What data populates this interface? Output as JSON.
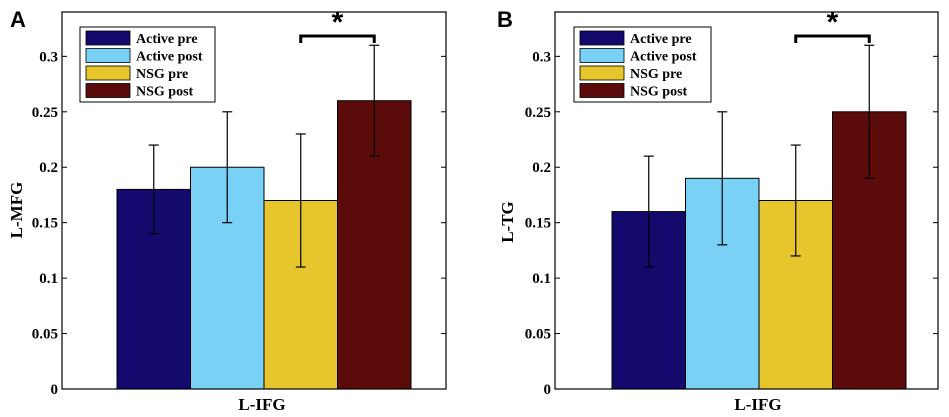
{
  "chart_data": [
    {
      "type": "bar",
      "panel": "A",
      "categories": [
        "L-IFG"
      ],
      "xlabel": "L-IFG",
      "ylabel": "L-MFG",
      "ylim": [
        0,
        0.34
      ],
      "yticks": [
        "0",
        "0.05",
        "0.1",
        "0.15",
        "0.2",
        "0.25",
        "0.3"
      ],
      "grid": false,
      "legend_position": "top-left",
      "series": [
        {
          "name": "Active pre",
          "values": [
            0.18
          ],
          "error": [
            0.04
          ],
          "color": "#140a6e"
        },
        {
          "name": "Active post",
          "values": [
            0.2
          ],
          "error": [
            0.05
          ],
          "color": "#79d2f5"
        },
        {
          "name": "NSG pre",
          "values": [
            0.17
          ],
          "error": [
            0.06
          ],
          "color": "#e7c52c"
        },
        {
          "name": "NSG post",
          "values": [
            0.26
          ],
          "error": [
            0.05
          ],
          "color": "#5c0b0b"
        }
      ],
      "annotation": "*"
    },
    {
      "type": "bar",
      "panel": "B",
      "categories": [
        "L-IFG"
      ],
      "xlabel": "L-IFG",
      "ylabel": "L-TG",
      "ylim": [
        0,
        0.34
      ],
      "yticks": [
        "0",
        "0.05",
        "0.1",
        "0.15",
        "0.2",
        "0.25",
        "0.3"
      ],
      "grid": false,
      "legend_position": "top-left",
      "series": [
        {
          "name": "Active pre",
          "values": [
            0.16
          ],
          "error": [
            0.05
          ],
          "color": "#140a6e"
        },
        {
          "name": "Active post",
          "values": [
            0.19
          ],
          "error": [
            0.06
          ],
          "color": "#79d2f5"
        },
        {
          "name": "NSG pre",
          "values": [
            0.17
          ],
          "error": [
            0.05
          ],
          "color": "#e7c52c"
        },
        {
          "name": "NSG post",
          "values": [
            0.25
          ],
          "error": [
            0.06
          ],
          "color": "#5c0b0b"
        }
      ],
      "annotation": "*"
    }
  ]
}
